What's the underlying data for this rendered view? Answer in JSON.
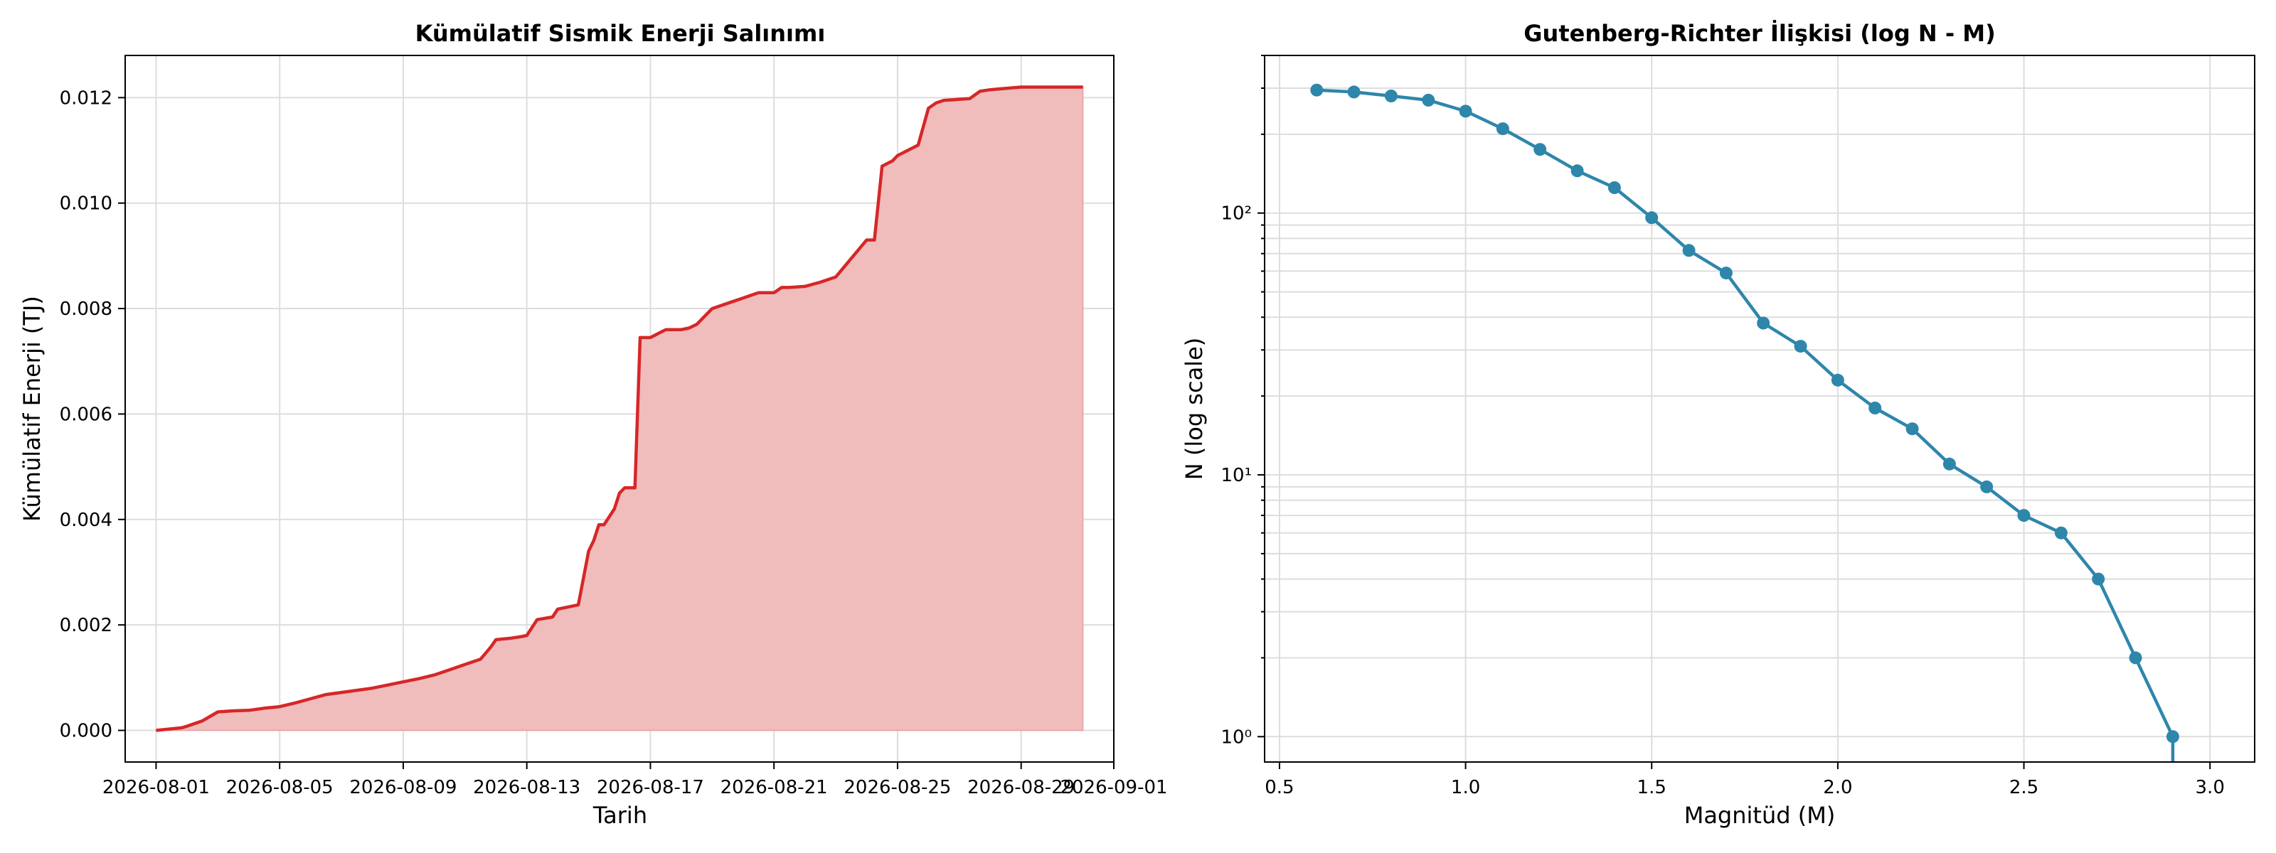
{
  "chart_data": [
    {
      "type": "area",
      "title": "Kümülatif Sismik Enerji Salınımı",
      "xlabel": "Tarih",
      "ylabel": "Kümülatif Enerji (TJ)",
      "xlim": [
        "2026-07-31",
        "2026-09-01"
      ],
      "ylim": [
        -0.0006,
        0.0128
      ],
      "x_ticks": [
        "2026-08-01",
        "2026-08-05",
        "2026-08-09",
        "2026-08-13",
        "2026-08-17",
        "2026-08-21",
        "2026-08-25",
        "2026-08-29",
        "2026-09-01"
      ],
      "y_ticks": [
        "0.000",
        "0.002",
        "0.004",
        "0.006",
        "0.008",
        "0.010",
        "0.012"
      ],
      "grid": true,
      "line_color": "#d62728",
      "fill_color": "#f0bcbc",
      "series": [
        {
          "x": [
            "2026-08-01",
            "2026-08-01T20",
            "2026-08-02",
            "2026-08-02T12",
            "2026-08-03",
            "2026-08-03T12",
            "2026-08-04",
            "2026-08-04T12",
            "2026-08-05",
            "2026-08-05T12",
            "2026-08-06",
            "2026-08-06T12",
            "2026-08-07",
            "2026-08-07T12",
            "2026-08-08",
            "2026-08-08T12",
            "2026-08-09",
            "2026-08-09T12",
            "2026-08-10",
            "2026-08-10T12",
            "2026-08-11",
            "2026-08-11T12",
            "2026-08-11T20",
            "2026-08-12",
            "2026-08-12T12",
            "2026-08-12T20",
            "2026-08-13",
            "2026-08-13T08",
            "2026-08-13T20",
            "2026-08-14",
            "2026-08-14T16",
            "2026-08-15",
            "2026-08-15T04",
            "2026-08-15T08",
            "2026-08-15T12",
            "2026-08-15T20",
            "2026-08-16",
            "2026-08-16T04",
            "2026-08-16T12",
            "2026-08-16T16",
            "2026-08-16T20",
            "2026-08-17",
            "2026-08-17T04",
            "2026-08-17T08",
            "2026-08-17T12",
            "2026-08-18",
            "2026-08-18T06",
            "2026-08-18T12",
            "2026-08-19",
            "2026-08-20",
            "2026-08-20T12",
            "2026-08-21",
            "2026-08-21T06",
            "2026-08-21T12",
            "2026-08-22",
            "2026-08-22T12",
            "2026-08-23",
            "2026-08-24",
            "2026-08-24T06",
            "2026-08-24T12",
            "2026-08-24T20",
            "2026-08-25",
            "2026-08-25T08",
            "2026-08-25T16",
            "2026-08-26",
            "2026-08-26T06",
            "2026-08-26T12",
            "2026-08-26T20",
            "2026-08-27",
            "2026-08-27T08",
            "2026-08-27T16",
            "2026-08-28",
            "2026-08-29",
            "2026-08-29T12",
            "2026-08-30",
            "2026-08-30T12",
            "2026-08-31"
          ],
          "values": [
            0.0,
            5e-05,
            8e-05,
            0.00018,
            0.00035,
            0.00037,
            0.00038,
            0.00042,
            0.00045,
            0.00052,
            0.0006,
            0.00068,
            0.00072,
            0.00076,
            0.0008,
            0.00086,
            0.00092,
            0.00098,
            0.00105,
            0.00115,
            0.00125,
            0.00135,
            0.00158,
            0.00172,
            0.00175,
            0.00178,
            0.0018,
            0.0021,
            0.00215,
            0.0023,
            0.00238,
            0.0034,
            0.0036,
            0.0039,
            0.0039,
            0.0042,
            0.0045,
            0.0046,
            0.0046,
            0.00745,
            0.00745,
            0.00745,
            0.0075,
            0.00755,
            0.0076,
            0.0076,
            0.00763,
            0.0077,
            0.008,
            0.0082,
            0.0083,
            0.0083,
            0.0084,
            0.0084,
            0.00842,
            0.0085,
            0.0086,
            0.0093,
            0.0093,
            0.0107,
            0.0108,
            0.0109,
            0.011,
            0.0111,
            0.0118,
            0.0119,
            0.01195,
            0.01196,
            0.01197,
            0.01198,
            0.01212,
            0.01215,
            0.0122,
            0.0122,
            0.0122,
            0.0122,
            0.0122
          ]
        }
      ]
    },
    {
      "type": "line",
      "title": "Gutenberg-Richter İlişkisi (log N - M)",
      "xlabel": "Magnitüd (M)",
      "ylabel": "N (log scale)",
      "xlim": [
        0.46,
        3.12
      ],
      "ylim": [
        0.8,
        400
      ],
      "yscale": "log",
      "x_ticks": [
        "0.5",
        "1.0",
        "1.5",
        "2.0",
        "2.5",
        "3.0"
      ],
      "y_ticks": [
        "10⁰",
        "10¹",
        "10²"
      ],
      "grid": true,
      "line_color": "#2e86ab",
      "series": [
        {
          "x": [
            0.6,
            0.7,
            0.8,
            0.9,
            1.0,
            1.1,
            1.2,
            1.3,
            1.4,
            1.5,
            1.6,
            1.7,
            1.8,
            1.9,
            2.0,
            2.1,
            2.2,
            2.3,
            2.4,
            2.5,
            2.6,
            2.7,
            2.8,
            2.9
          ],
          "values": [
            295,
            290,
            280,
            270,
            245,
            210,
            175,
            145,
            125,
            96,
            72,
            59,
            38,
            31,
            23,
            18,
            15,
            11,
            9,
            7,
            6,
            4,
            2,
            1
          ]
        }
      ]
    }
  ]
}
